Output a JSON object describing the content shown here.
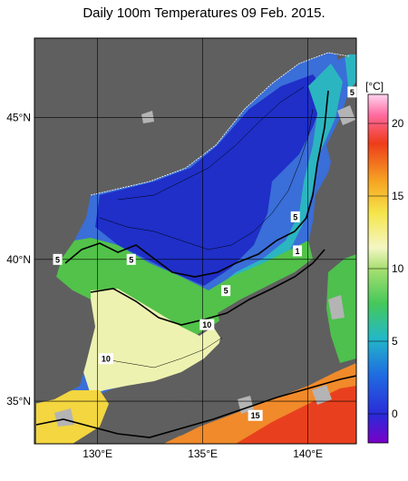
{
  "title": "Daily 100m Temperatures 09 Feb. 2015.",
  "lat_labels": [
    {
      "label": "45°N",
      "value": 45
    },
    {
      "label": "40°N",
      "value": 40
    },
    {
      "label": "35°N",
      "value": 35
    }
  ],
  "lon_labels": [
    {
      "label": "130°E",
      "value": 130
    },
    {
      "label": "135°E",
      "value": 135
    },
    {
      "label": "140°E",
      "value": 140
    }
  ],
  "colorbar": {
    "unit": "[°C]",
    "range": [
      -2,
      22
    ],
    "ticks": [
      0,
      5,
      10,
      15,
      20
    ]
  },
  "contour_labels": [
    {
      "text": "5",
      "lon": 142.1,
      "lat": 45.9
    },
    {
      "text": "5",
      "lon": 139.4,
      "lat": 41.5
    },
    {
      "text": "1",
      "lon": 139.5,
      "lat": 40.3
    },
    {
      "text": "5",
      "lon": 128.1,
      "lat": 40.0
    },
    {
      "text": "5",
      "lon": 131.6,
      "lat": 40.0
    },
    {
      "text": "5",
      "lon": 136.1,
      "lat": 38.9
    },
    {
      "text": "10",
      "lon": 135.2,
      "lat": 37.7
    },
    {
      "text": "10",
      "lon": 130.4,
      "lat": 36.5
    },
    {
      "text": "15",
      "lon": 137.5,
      "lat": 34.5
    }
  ],
  "colors": {
    "land": "#5f5f5f",
    "land_highlight": "#b4b4b4",
    "grid": "#000000"
  }
}
